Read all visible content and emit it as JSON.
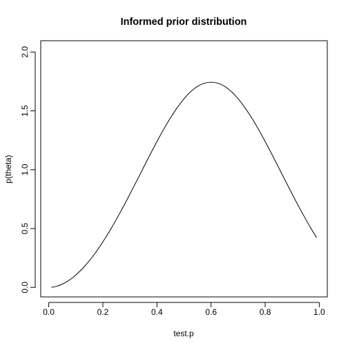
{
  "chart_data": {
    "type": "line",
    "title": "Informed prior distribution",
    "xlabel": "test.p",
    "ylabel": "p(theta)",
    "xlim": [
      -0.0296,
      1.0296
    ],
    "ylim": [
      -0.0806,
      2.0958
    ],
    "xticks": [
      0.0,
      0.2,
      0.4,
      0.6,
      0.8,
      1.0
    ],
    "xtick_labels": [
      "0.0",
      "0.2",
      "0.4",
      "0.6",
      "0.8",
      "1.0"
    ],
    "yticks": [
      0.0,
      0.5,
      1.0,
      1.5,
      2.0
    ],
    "ytick_labels": [
      "0.0",
      "0.5",
      "1.0",
      "1.5",
      "2.0"
    ],
    "grid": false,
    "box": true,
    "line_color": "#000000",
    "series": [
      {
        "x": [
          0.01,
          0.03,
          0.05,
          0.07,
          0.09,
          0.11,
          0.13,
          0.15,
          0.17,
          0.19,
          0.21,
          0.23,
          0.25,
          0.27,
          0.29,
          0.31,
          0.33,
          0.35,
          0.37,
          0.39,
          0.41,
          0.43,
          0.45,
          0.47,
          0.49,
          0.51,
          0.53,
          0.55,
          0.57,
          0.59,
          0.61,
          0.63,
          0.65,
          0.67,
          0.69,
          0.71,
          0.73,
          0.75,
          0.77,
          0.79,
          0.81,
          0.83,
          0.85,
          0.87,
          0.89,
          0.91,
          0.93,
          0.95,
          0.97,
          0.99
        ],
        "y": [
          0.0,
          0.01,
          0.028,
          0.053,
          0.086,
          0.126,
          0.173,
          0.227,
          0.286,
          0.352,
          0.423,
          0.499,
          0.579,
          0.662,
          0.748,
          0.837,
          0.927,
          1.018,
          1.108,
          1.196,
          1.282,
          1.364,
          1.441,
          1.511,
          1.574,
          1.629,
          1.674,
          1.708,
          1.731,
          1.742,
          1.742,
          1.731,
          1.708,
          1.674,
          1.629,
          1.574,
          1.511,
          1.441,
          1.364,
          1.282,
          1.196,
          1.108,
          1.018,
          0.927,
          0.837,
          0.748,
          0.662,
          0.579,
          0.499,
          0.423
        ]
      }
    ]
  }
}
